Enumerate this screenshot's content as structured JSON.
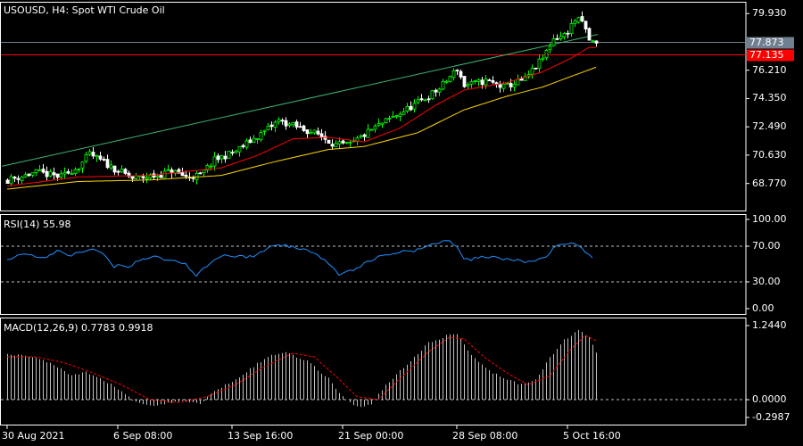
{
  "colors": {
    "background": "#000000",
    "frame": "#ffffff",
    "bull_candle": "#00ff00",
    "bear_candle": "#ffffff",
    "ma_fast": "#ff0000",
    "ma_slow": "#ffd700",
    "trendline": "#3cb371",
    "bid_line": "#708090",
    "ask_line": "#ff0000",
    "bid_tag": "#708090",
    "ask_tag": "#ff0000",
    "rsi": "#1e90ff",
    "macd_hist": "#c0c0c0",
    "macd_signal": "#ff0000"
  },
  "chart_data": [
    {
      "type": "candlestick",
      "title": "USOUSD, H4:  Spot WTI Crude Oil",
      "ylim": [
        67.6,
        80.4
      ],
      "y_ticks": [
        "79.930",
        "77.873",
        "77.135",
        "76.210",
        "74.350",
        "72.490",
        "70.630",
        "68.770"
      ],
      "bid_price": "77.873",
      "ask_price": "77.135",
      "x_ticks": [
        "30 Aug 2021",
        "6 Sep 08:00",
        "13 Sep 16:00",
        "21 Sep 00:00",
        "28 Sep 08:00",
        "5 Oct 16:00"
      ],
      "x_tick_bars": [
        0,
        31,
        63,
        94,
        126,
        157
      ],
      "anchors": [
        [
          0,
          69.0
        ],
        [
          8,
          69.5
        ],
        [
          15,
          69.2
        ],
        [
          20,
          69.9
        ],
        [
          23,
          70.7
        ],
        [
          28,
          70.0
        ],
        [
          35,
          69.1
        ],
        [
          42,
          69.3
        ],
        [
          46,
          69.6
        ],
        [
          50,
          69.2
        ],
        [
          54,
          69.3
        ],
        [
          58,
          70.3
        ],
        [
          64,
          70.9
        ],
        [
          72,
          72.2
        ],
        [
          76,
          72.9
        ],
        [
          82,
          72.4
        ],
        [
          87,
          72.0
        ],
        [
          92,
          71.3
        ],
        [
          96,
          71.3
        ],
        [
          102,
          72.3
        ],
        [
          110,
          73.4
        ],
        [
          116,
          74.2
        ],
        [
          121,
          75.0
        ],
        [
          126,
          76.3
        ],
        [
          128,
          75.2
        ],
        [
          134,
          75.5
        ],
        [
          139,
          75.1
        ],
        [
          145,
          75.6
        ],
        [
          150,
          77.0
        ],
        [
          153,
          78.3
        ],
        [
          156,
          78.5
        ],
        [
          159,
          79.5
        ],
        [
          161,
          79.4
        ],
        [
          163,
          78.2
        ],
        [
          165,
          77.9
        ]
      ],
      "ma_fast": [
        [
          0,
          68.6
        ],
        [
          20,
          69.2
        ],
        [
          40,
          69.3
        ],
        [
          60,
          69.8
        ],
        [
          70,
          70.6
        ],
        [
          80,
          71.7
        ],
        [
          90,
          71.8
        ],
        [
          100,
          71.5
        ],
        [
          110,
          72.4
        ],
        [
          120,
          73.9
        ],
        [
          128,
          74.9
        ],
        [
          140,
          75.4
        ],
        [
          150,
          76.1
        ],
        [
          158,
          77.0
        ],
        [
          163,
          77.7
        ],
        [
          165,
          77.7
        ]
      ],
      "ma_slow": [
        [
          0,
          68.4
        ],
        [
          20,
          68.9
        ],
        [
          40,
          69.0
        ],
        [
          60,
          69.3
        ],
        [
          75,
          70.2
        ],
        [
          90,
          71.0
        ],
        [
          100,
          71.2
        ],
        [
          115,
          72.1
        ],
        [
          128,
          73.6
        ],
        [
          140,
          74.5
        ],
        [
          150,
          75.1
        ],
        [
          158,
          75.8
        ],
        [
          165,
          76.4
        ]
      ],
      "trendline": [
        [
          0,
          69.9
        ],
        [
          163,
          78.5
        ]
      ]
    },
    {
      "type": "line",
      "title": "RSI(14) 55.98",
      "ylim": [
        0,
        100
      ],
      "y_ticks": [
        "100.00",
        "70.00",
        "30.00",
        "0.00"
      ],
      "levels": [
        70,
        30
      ],
      "values": [
        [
          0,
          56
        ],
        [
          6,
          62
        ],
        [
          10,
          56
        ],
        [
          14,
          64
        ],
        [
          18,
          60
        ],
        [
          22,
          66
        ],
        [
          26,
          64
        ],
        [
          30,
          48
        ],
        [
          34,
          48
        ],
        [
          38,
          56
        ],
        [
          42,
          58
        ],
        [
          46,
          54
        ],
        [
          50,
          50
        ],
        [
          53,
          38
        ],
        [
          56,
          48
        ],
        [
          60,
          60
        ],
        [
          66,
          58
        ],
        [
          70,
          60
        ],
        [
          74,
          70
        ],
        [
          78,
          72
        ],
        [
          82,
          66
        ],
        [
          86,
          64
        ],
        [
          90,
          52
        ],
        [
          93,
          38
        ],
        [
          96,
          42
        ],
        [
          100,
          50
        ],
        [
          104,
          58
        ],
        [
          110,
          64
        ],
        [
          116,
          66
        ],
        [
          120,
          74
        ],
        [
          124,
          76
        ],
        [
          126,
          70
        ],
        [
          128,
          54
        ],
        [
          134,
          58
        ],
        [
          140,
          56
        ],
        [
          145,
          52
        ],
        [
          150,
          56
        ],
        [
          154,
          70
        ],
        [
          158,
          72
        ],
        [
          161,
          68
        ],
        [
          164,
          58
        ]
      ]
    },
    {
      "type": "bar",
      "title": "MACD(12,26,9) 0.7783 0.9918",
      "ylim": [
        -0.2987,
        1.244
      ],
      "y_ticks": [
        "1.2440",
        "0.0000",
        "-0.2987"
      ],
      "histogram": [
        [
          0,
          0.75
        ],
        [
          8,
          0.72
        ],
        [
          14,
          0.55
        ],
        [
          18,
          0.4
        ],
        [
          22,
          0.45
        ],
        [
          26,
          0.35
        ],
        [
          32,
          0.15
        ],
        [
          36,
          -0.05
        ],
        [
          40,
          -0.1
        ],
        [
          46,
          -0.05
        ],
        [
          50,
          -0.02
        ],
        [
          54,
          -0.08
        ],
        [
          58,
          0.15
        ],
        [
          64,
          0.35
        ],
        [
          70,
          0.6
        ],
        [
          74,
          0.75
        ],
        [
          78,
          0.8
        ],
        [
          84,
          0.65
        ],
        [
          90,
          0.35
        ],
        [
          94,
          0.05
        ],
        [
          98,
          -0.12
        ],
        [
          102,
          -0.08
        ],
        [
          106,
          0.25
        ],
        [
          112,
          0.6
        ],
        [
          118,
          0.95
        ],
        [
          124,
          1.1
        ],
        [
          126,
          1.1
        ],
        [
          130,
          0.75
        ],
        [
          136,
          0.45
        ],
        [
          140,
          0.35
        ],
        [
          144,
          0.25
        ],
        [
          148,
          0.35
        ],
        [
          152,
          0.7
        ],
        [
          156,
          1.0
        ],
        [
          160,
          1.18
        ],
        [
          163,
          1.05
        ],
        [
          165,
          0.78
        ]
      ],
      "signal": [
        [
          0,
          0.72
        ],
        [
          8,
          0.72
        ],
        [
          16,
          0.62
        ],
        [
          24,
          0.45
        ],
        [
          32,
          0.25
        ],
        [
          40,
          0.0
        ],
        [
          48,
          -0.05
        ],
        [
          56,
          0.05
        ],
        [
          64,
          0.25
        ],
        [
          72,
          0.55
        ],
        [
          80,
          0.78
        ],
        [
          86,
          0.72
        ],
        [
          92,
          0.4
        ],
        [
          98,
          0.05
        ],
        [
          104,
          0.0
        ],
        [
          110,
          0.35
        ],
        [
          118,
          0.8
        ],
        [
          124,
          1.05
        ],
        [
          128,
          1.02
        ],
        [
          134,
          0.7
        ],
        [
          140,
          0.45
        ],
        [
          146,
          0.25
        ],
        [
          152,
          0.4
        ],
        [
          158,
          0.85
        ],
        [
          162,
          1.08
        ],
        [
          165,
          0.99
        ]
      ]
    }
  ]
}
